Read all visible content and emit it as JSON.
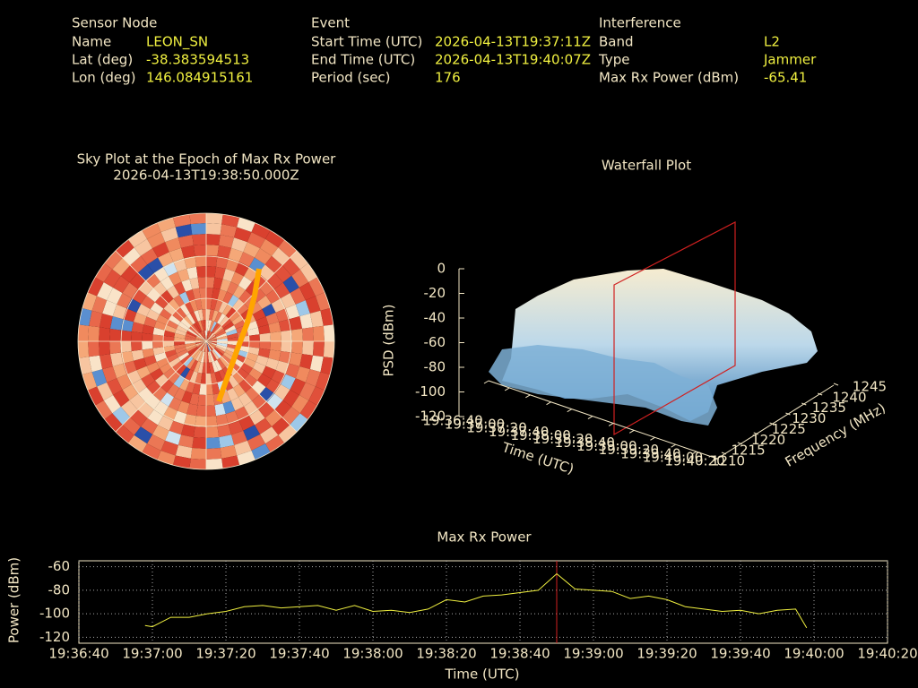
{
  "header": {
    "sensor_node": {
      "heading": "Sensor Node",
      "rows": [
        [
          "Name",
          "LEON_SN"
        ],
        [
          "Lat (deg)",
          "-38.383594513"
        ],
        [
          "Lon (deg)",
          "146.084915161"
        ]
      ]
    },
    "event": {
      "heading": "Event",
      "rows": [
        [
          "Start Time (UTC)",
          "2026-04-13T19:37:11Z"
        ],
        [
          "End Time (UTC)",
          "2026-04-13T19:40:07Z"
        ],
        [
          "Period (sec)",
          "176"
        ]
      ]
    },
    "interference": {
      "heading": "Interference",
      "rows": [
        [
          "Band",
          "L2"
        ],
        [
          "Type",
          "Jammer"
        ],
        [
          "Max Rx Power (dBm)",
          "-65.41"
        ]
      ]
    }
  },
  "sky_plot": {
    "title": "Sky Plot at the Epoch of Max Rx Power",
    "subtitle": "2026-04-13T19:38:50.000Z"
  },
  "waterfall": {
    "title": "Waterfall Plot",
    "zlabel": "PSD (dBm)",
    "xlabel": "Time (UTC)",
    "ylabel": "Frequency (MHz)",
    "zlim": [
      -120,
      0
    ],
    "zticks": [
      0,
      -20,
      -40,
      -60,
      -80,
      -100,
      -120
    ],
    "xlim": [
      "19:36:40",
      "19:40:20"
    ],
    "xticks": [
      "19:36:40",
      "19:37:00",
      "19:37:20",
      "19:37:40",
      "19:38:00",
      "19:38:20",
      "19:38:40",
      "19:39:00",
      "19:39:20",
      "19:39:40",
      "19:40:00",
      "19:40:20"
    ],
    "ylim": [
      1210,
      1245
    ],
    "yticks": [
      1210,
      1215,
      1220,
      1225,
      1230,
      1235,
      1240,
      1245
    ]
  },
  "chart_data": {
    "type": "line",
    "title": "Max Rx Power",
    "xlabel": "Time (UTC)",
    "ylabel": "Power (dBm)",
    "color": "#f0f040",
    "grid": true,
    "x": [
      "19:36:58",
      "19:37:00",
      "19:37:05",
      "19:37:10",
      "19:37:15",
      "19:37:20",
      "19:37:25",
      "19:37:30",
      "19:37:35",
      "19:37:40",
      "19:37:45",
      "19:37:50",
      "19:37:55",
      "19:38:00",
      "19:38:05",
      "19:38:10",
      "19:38:15",
      "19:38:20",
      "19:38:25",
      "19:38:30",
      "19:38:35",
      "19:38:40",
      "19:38:45",
      "19:38:50",
      "19:38:55",
      "19:39:00",
      "19:39:05",
      "19:39:10",
      "19:39:15",
      "19:39:20",
      "19:39:25",
      "19:39:30",
      "19:39:35",
      "19:39:40",
      "19:39:45",
      "19:39:50",
      "19:39:55",
      "19:39:58"
    ],
    "values": [
      -110,
      -111,
      -103,
      -103,
      -100,
      -98,
      -94,
      -93,
      -95,
      -94,
      -93,
      -97,
      -93,
      -98,
      -97,
      -99,
      -96,
      -88,
      -90,
      -85,
      -84,
      -82,
      -80,
      -66,
      -79,
      -80,
      -81,
      -87,
      -85,
      -88,
      -94,
      -96,
      -98,
      -97,
      -100,
      -97,
      -96,
      -112
    ],
    "vline": "19:38:50",
    "xlim": [
      "19:36:40",
      "19:40:20"
    ],
    "xticks": [
      "19:36:40",
      "19:37:00",
      "19:37:20",
      "19:37:40",
      "19:38:00",
      "19:38:20",
      "19:38:40",
      "19:39:00",
      "19:39:20",
      "19:39:40",
      "19:40:00",
      "19:40:20"
    ],
    "ylim": [
      -125,
      -55
    ],
    "yticks": [
      -60,
      -80,
      -100,
      -120
    ]
  }
}
